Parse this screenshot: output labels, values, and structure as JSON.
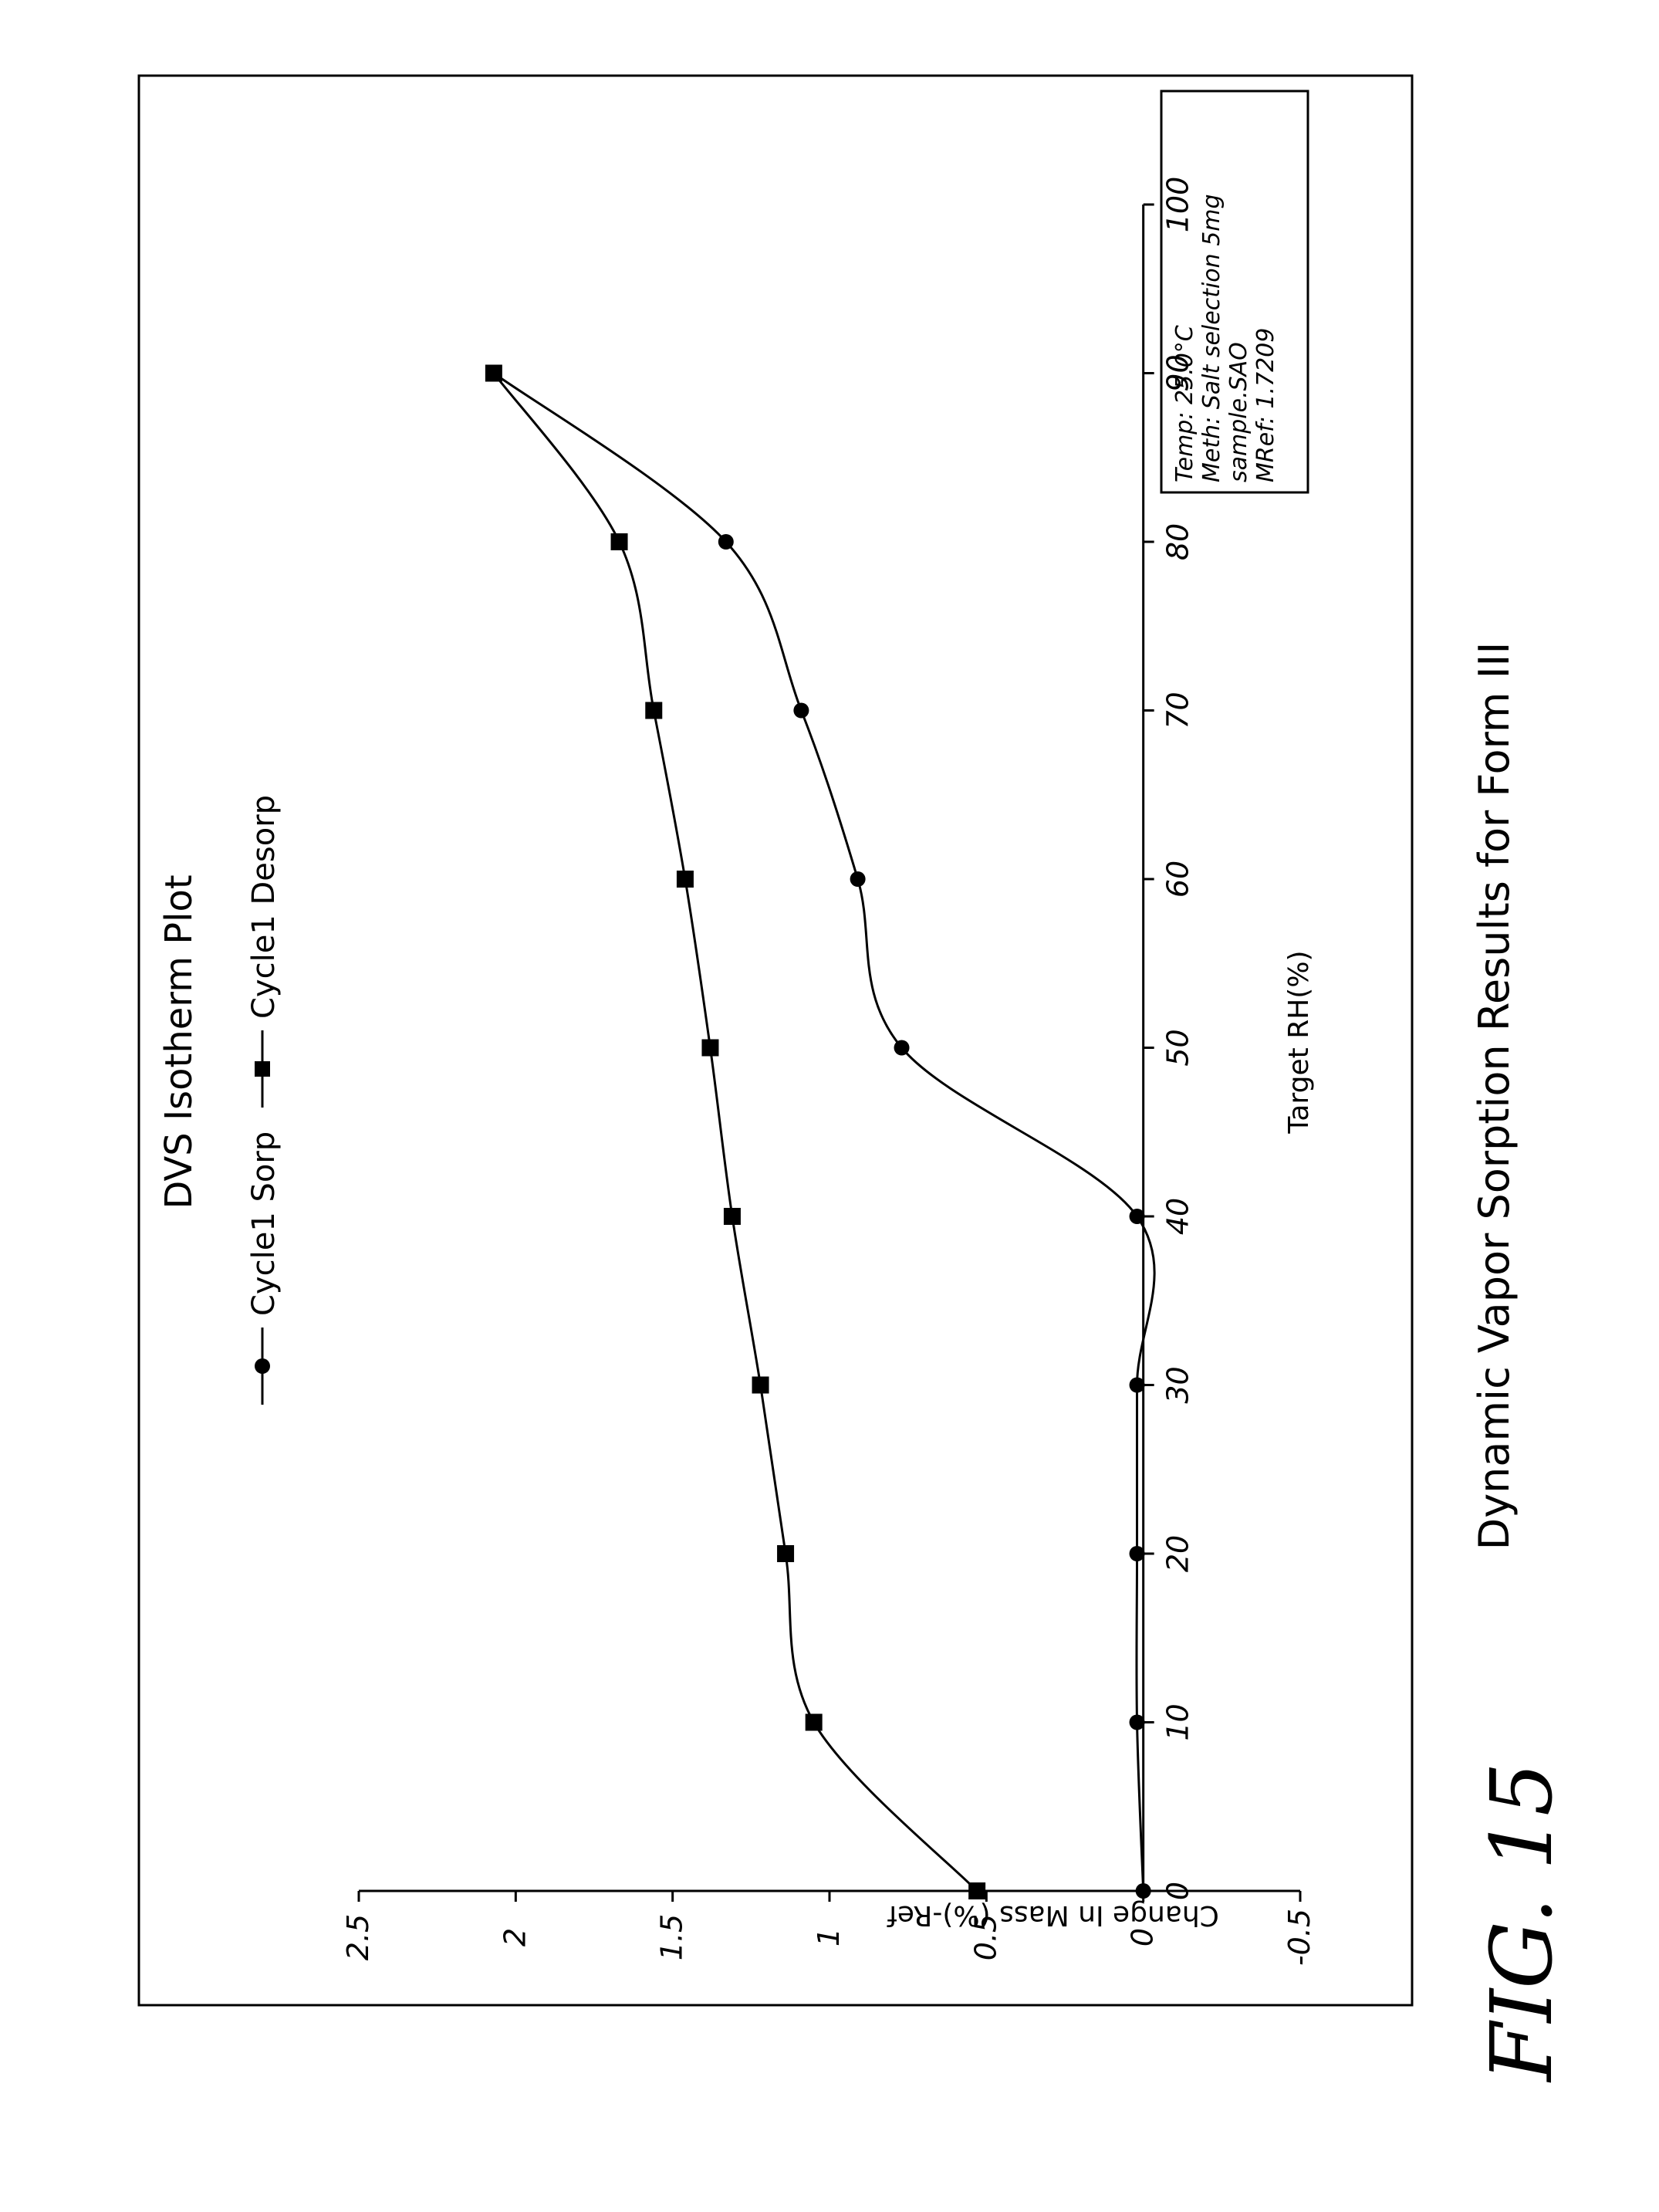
{
  "figure_label": "FIG. 15",
  "chart_data": {
    "type": "line",
    "title": "DVS Isotherm Plot",
    "subtitle": "Dynamic Vapor Sorption Results for Form III",
    "xlabel": "Target RH(%)",
    "ylabel": "Change In Mass (%)-Ref",
    "xlim": [
      0,
      100
    ],
    "ylim": [
      -0.5,
      2.5
    ],
    "x_ticks": [
      "0",
      "10",
      "20",
      "30",
      "40",
      "50",
      "60",
      "70",
      "80",
      "90",
      "100"
    ],
    "y_ticks": [
      "-0.5",
      "0",
      "0.5",
      "1",
      "1.5",
      "2",
      "2.5"
    ],
    "grid": false,
    "legend_placement": "top",
    "info_box": [
      "Temp: 25.0°C",
      "Meth: Salt selection 5mg",
      "sample.SAO",
      "MRef: 1.7209"
    ],
    "series": [
      {
        "name": "Cycle1 Sorp",
        "marker": "circle",
        "x": [
          0,
          10,
          20,
          30,
          40,
          50,
          60,
          70,
          80,
          90
        ],
        "values": [
          0.0,
          0.02,
          0.02,
          0.02,
          0.02,
          0.77,
          0.91,
          1.09,
          1.33,
          2.07
        ]
      },
      {
        "name": "Cycle1 Desorp",
        "marker": "square",
        "x": [
          90,
          80,
          70,
          60,
          50,
          40,
          30,
          20,
          10,
          0
        ],
        "values": [
          2.07,
          1.67,
          1.56,
          1.46,
          1.38,
          1.31,
          1.22,
          1.14,
          1.05,
          0.53
        ]
      }
    ]
  }
}
